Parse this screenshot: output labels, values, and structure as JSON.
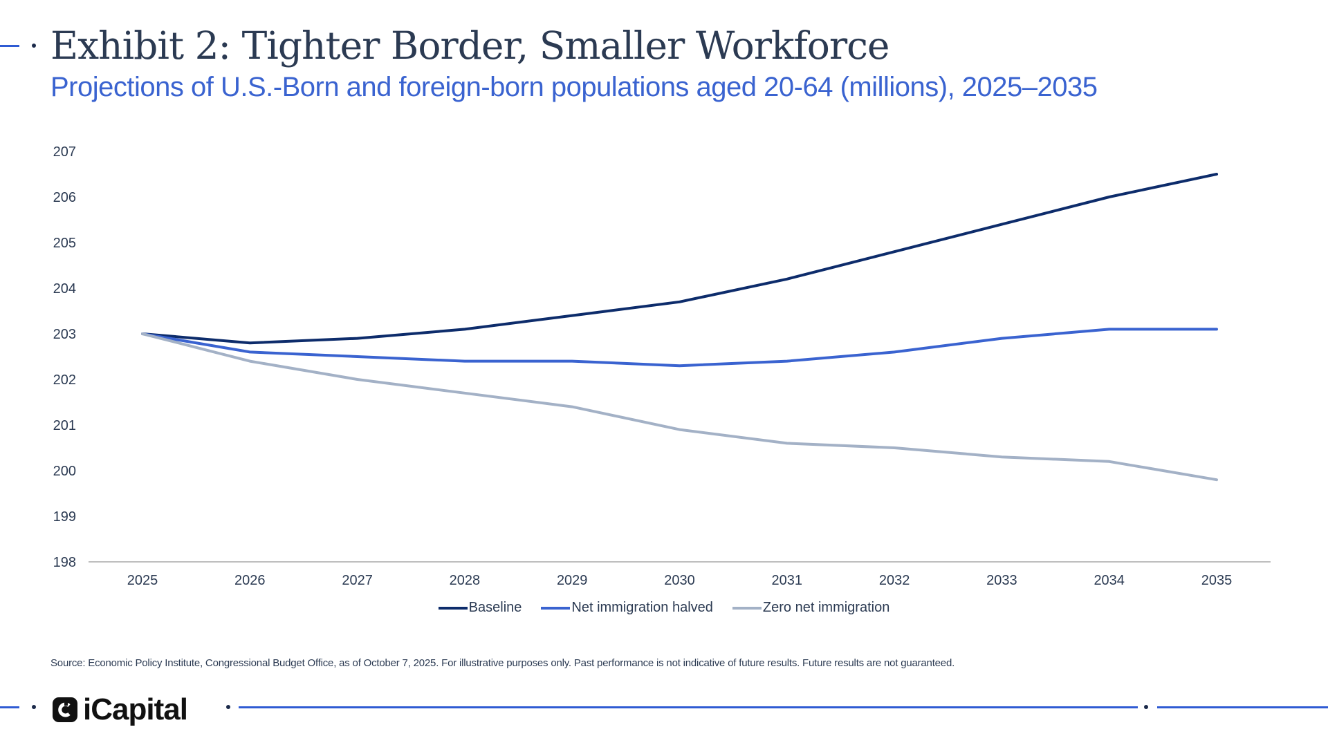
{
  "header": {
    "title": "Exhibit 2: Tighter Border, Smaller Workforce",
    "subtitle": "Projections of U.S.-Born and foreign-born populations aged 20-64 (millions), 2025–2035"
  },
  "chart_data": {
    "type": "line",
    "x": [
      "2025",
      "2026",
      "2027",
      "2028",
      "2029",
      "2030",
      "2031",
      "2032",
      "2033",
      "2034",
      "2035"
    ],
    "yticks": [
      198,
      199,
      200,
      201,
      202,
      203,
      204,
      205,
      206,
      207
    ],
    "ylim": [
      198,
      207
    ],
    "grid": false,
    "legend_position": "bottom-center",
    "series": [
      {
        "name": "Baseline",
        "color": "#0d2c6b",
        "values": [
          203.0,
          202.8,
          202.9,
          203.1,
          203.4,
          203.7,
          204.2,
          204.8,
          205.4,
          206.0,
          206.5
        ]
      },
      {
        "name": "Net immigration halved",
        "color": "#3a63d0",
        "values": [
          203.0,
          202.6,
          202.5,
          202.4,
          202.4,
          202.3,
          202.4,
          202.6,
          202.9,
          203.1,
          203.1
        ]
      },
      {
        "name": "Zero net immigration",
        "color": "#a3b1c6",
        "values": [
          203.0,
          202.4,
          202.0,
          201.7,
          201.4,
          200.9,
          200.6,
          200.5,
          200.3,
          200.2,
          199.8
        ]
      }
    ]
  },
  "footer": {
    "source": "Source: Economic Policy Institute, Congressional Budget Office, as of October 7, 2025. For illustrative purposes only. Past performance is not indicative of future results. Future results are not guaranteed.",
    "logo_text": "iCapital"
  },
  "colors": {
    "accent": "#2f5bd3",
    "title": "#2b3a52",
    "subtitle": "#3a63d0"
  },
  "icons": {
    "logo": "icapital-logo-icon"
  }
}
